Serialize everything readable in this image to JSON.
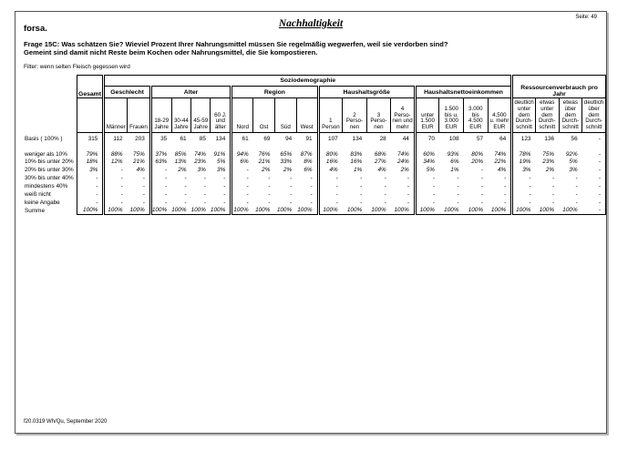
{
  "page": {
    "brand": "forsa.",
    "title": "Nachhaltigkeit",
    "page_label": "Seite: 49",
    "footer": "f20.0319 Wh/Qu, September 2020"
  },
  "question": {
    "line1": "Frage 15C: Was schätzen Sie? Wieviel Prozent Ihrer Nahrungsmittel müssen Sie regelmäßig wegwerfen, weil sie verdorben sind?",
    "line2": "Gemeint sind damit nicht Reste beim Kochen oder Nahrungsmittel, die Sie kompostieren."
  },
  "filter": "Filter: wenn selten Fleisch gegessen wird",
  "table": {
    "span_header": "Soziodemographie",
    "overall_label": "Gesamt",
    "groups": [
      {
        "label": "Geschlecht",
        "cols": [
          "Männer",
          "Frauen"
        ]
      },
      {
        "label": "Alter",
        "cols": [
          "18-29\nJahre",
          "30-44\nJahre",
          "45-59\nJahre",
          "60 J.\nund\nälter"
        ]
      },
      {
        "label": "Region",
        "cols": [
          "Nord",
          "Ost",
          "Süd",
          "West"
        ]
      },
      {
        "label": "Haushaltsgröße",
        "cols": [
          "1\nPerson",
          "2\nPerso-\nnen",
          "3\nPerso-\nnen",
          "4\nPerso-\nnen und\nmehr"
        ]
      },
      {
        "label": "Haushaltsnettoeinkommen",
        "cols": [
          "unter\n1.500\nEUR",
          "1.500\nbis u.\n3.000\nEUR",
          "3.000\nbis\n4.500\nEUR",
          "4.500\nu. mehr\nEUR"
        ]
      },
      {
        "label": "Ressourcenverbrauch pro Jahr",
        "cols": [
          "deutlich\nunter\ndem\nDurch-\nschnitt",
          "etwas\nunter\ndem\nDurch-\nschnitt",
          "etwas\nüber dem\nDurch-\nschnitt",
          "deutlich\nüber dem\nDurch-\nschnitt"
        ]
      }
    ],
    "basis": {
      "label": "Basis ( 100% )",
      "values": [
        "315",
        "112",
        "203",
        "35",
        "61",
        "85",
        "134",
        "61",
        "69",
        "94",
        "91",
        "107",
        "134",
        "28",
        "44",
        "70",
        "108",
        "57",
        "64",
        "123",
        "136",
        "56",
        "-"
      ]
    },
    "rows": [
      {
        "label": "weniger als 10%",
        "values": [
          "79%",
          "88%",
          "75%",
          "37%",
          "85%",
          "74%",
          "91%",
          "94%",
          "76%",
          "65%",
          "87%",
          "80%",
          "83%",
          "68%",
          "74%",
          "60%",
          "93%",
          "80%",
          "74%",
          "78%",
          "75%",
          "92%",
          "-"
        ]
      },
      {
        "label": "10% bis unter 20%",
        "values": [
          "18%",
          "12%",
          "21%",
          "63%",
          "13%",
          "23%",
          "5%",
          "6%",
          "21%",
          "33%",
          "8%",
          "16%",
          "16%",
          "27%",
          "24%",
          "34%",
          "6%",
          "20%",
          "22%",
          "19%",
          "23%",
          "5%",
          "-"
        ]
      },
      {
        "label": "20% bis unter 30%",
        "values": [
          "3%",
          "-",
          "4%",
          "-",
          "2%",
          "3%",
          "3%",
          "-",
          "2%",
          "2%",
          "6%",
          "4%",
          "1%",
          "4%",
          "2%",
          "5%",
          "1%",
          "-",
          "4%",
          "3%",
          "2%",
          "3%",
          "-"
        ]
      },
      {
        "label": "30% bis unter 40%",
        "values": [
          "-",
          "-",
          "-",
          "-",
          "-",
          "-",
          "-",
          "-",
          "-",
          "-",
          "-",
          "-",
          "-",
          "-",
          "-",
          "-",
          "-",
          "-",
          "-",
          "-",
          "-",
          "-",
          "-"
        ]
      },
      {
        "label": "mindestens 40%",
        "values": [
          "-",
          "-",
          "-",
          "-",
          "-",
          "-",
          "-",
          "-",
          "-",
          "-",
          "-",
          "-",
          "-",
          "-",
          "-",
          "-",
          "-",
          "-",
          "-",
          "-",
          "-",
          "-",
          "-"
        ]
      },
      {
        "label": "weiß nicht",
        "values": [
          "-",
          "-",
          "-",
          "-",
          "-",
          "-",
          "-",
          "-",
          "-",
          "-",
          "-",
          "-",
          "-",
          "-",
          "-",
          "-",
          "-",
          "-",
          "-",
          "-",
          "-",
          "-",
          "-"
        ]
      },
      {
        "label": "keine Angabe",
        "values": [
          "-",
          "-",
          "-",
          "-",
          "-",
          "-",
          "-",
          "-",
          "-",
          "-",
          "-",
          "-",
          "-",
          "-",
          "-",
          "-",
          "-",
          "-",
          "-",
          "-",
          "-",
          "-",
          "-"
        ]
      },
      {
        "label": "Summe",
        "values": [
          "100%",
          "100%",
          "100%",
          "100%",
          "100%",
          "100%",
          "100%",
          "100%",
          "100%",
          "100%",
          "100%",
          "100%",
          "100%",
          "100%",
          "100%",
          "100%",
          "100%",
          "100%",
          "100%",
          "100%",
          "100%",
          "100%",
          "-"
        ]
      }
    ]
  }
}
